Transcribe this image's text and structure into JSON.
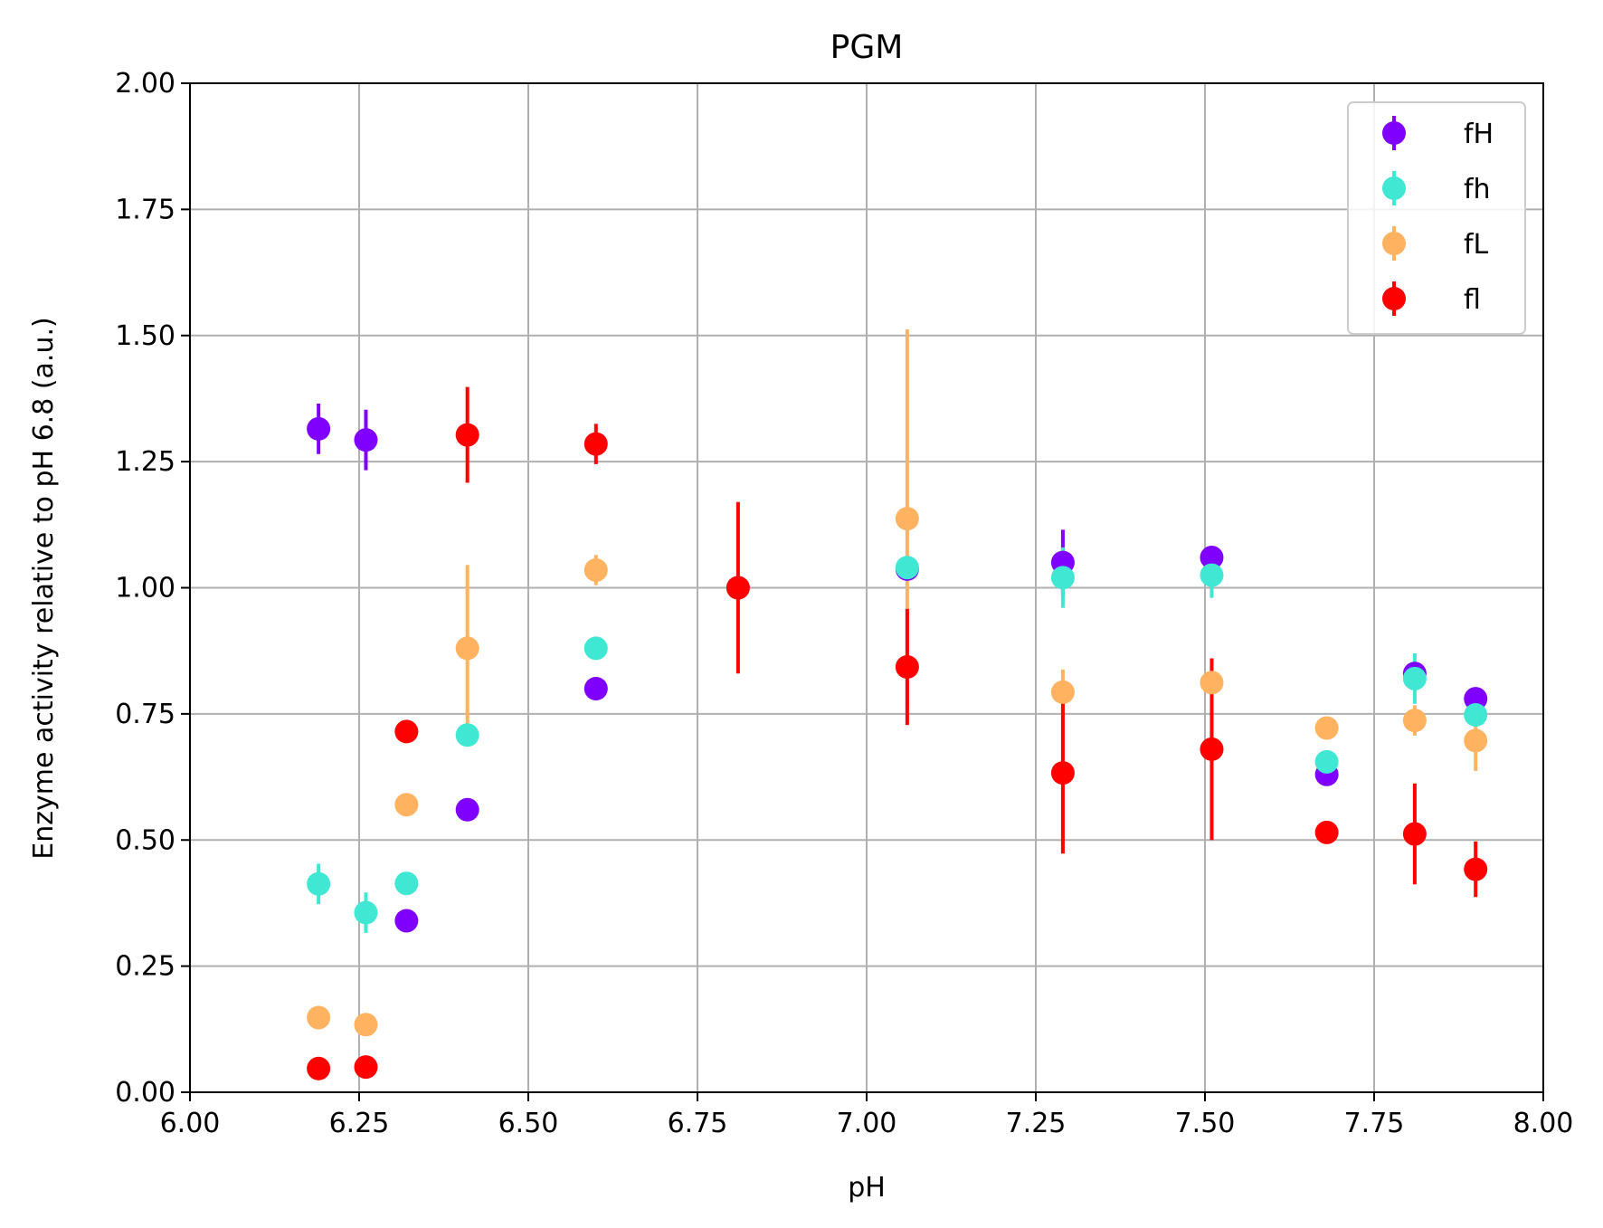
{
  "chart_data": {
    "type": "scatter",
    "title": "PGM",
    "xlabel": "pH",
    "ylabel": "Enzyme activity relative to pH 6.8 (a.u.)",
    "xlim": [
      6.0,
      8.0
    ],
    "ylim": [
      0.0,
      2.0
    ],
    "xticks": [
      "6.00",
      "6.25",
      "6.50",
      "6.75",
      "7.00",
      "7.25",
      "7.50",
      "7.75",
      "8.00"
    ],
    "yticks": [
      "0.00",
      "0.25",
      "0.50",
      "0.75",
      "1.00",
      "1.25",
      "1.50",
      "1.75",
      "2.00"
    ],
    "grid": true,
    "legend_position": "top-right",
    "series": [
      {
        "name": "fH",
        "color": "#8000ff",
        "points": [
          {
            "x": 6.19,
            "y": 1.315,
            "err": 0.05
          },
          {
            "x": 6.26,
            "y": 1.293,
            "err": 0.06
          },
          {
            "x": 6.32,
            "y": 0.34,
            "err": 0.0
          },
          {
            "x": 6.41,
            "y": 0.56,
            "err": 0.0
          },
          {
            "x": 6.6,
            "y": 0.8,
            "err": 0.0
          },
          {
            "x": 6.81,
            "y": 1.0,
            "err": 0.0
          },
          {
            "x": 7.06,
            "y": 1.037,
            "err": 0.0
          },
          {
            "x": 7.29,
            "y": 1.05,
            "err": 0.065
          },
          {
            "x": 7.51,
            "y": 1.06,
            "err": 0.0
          },
          {
            "x": 7.68,
            "y": 0.63,
            "err": 0.0
          },
          {
            "x": 7.81,
            "y": 0.83,
            "err": 0.0
          },
          {
            "x": 7.9,
            "y": 0.78,
            "err": 0.0
          }
        ]
      },
      {
        "name": "fh",
        "color": "#40e8d4",
        "points": [
          {
            "x": 6.19,
            "y": 0.413,
            "err": 0.04
          },
          {
            "x": 6.26,
            "y": 0.356,
            "err": 0.04
          },
          {
            "x": 6.32,
            "y": 0.414,
            "err": 0.0
          },
          {
            "x": 6.41,
            "y": 0.708,
            "err": 0.0
          },
          {
            "x": 6.6,
            "y": 0.88,
            "err": 0.0
          },
          {
            "x": 6.81,
            "y": 1.0,
            "err": 0.0
          },
          {
            "x": 7.06,
            "y": 1.04,
            "err": 0.0
          },
          {
            "x": 7.29,
            "y": 1.02,
            "err": 0.06
          },
          {
            "x": 7.51,
            "y": 1.025,
            "err": 0.045
          },
          {
            "x": 7.68,
            "y": 0.655,
            "err": 0.0
          },
          {
            "x": 7.81,
            "y": 0.82,
            "err": 0.05
          },
          {
            "x": 7.9,
            "y": 0.748,
            "err": 0.0
          }
        ]
      },
      {
        "name": "fL",
        "color": "#ffb360",
        "points": [
          {
            "x": 6.19,
            "y": 0.148,
            "err": 0.0
          },
          {
            "x": 6.26,
            "y": 0.134,
            "err": 0.0
          },
          {
            "x": 6.32,
            "y": 0.57,
            "err": 0.0
          },
          {
            "x": 6.41,
            "y": 0.88,
            "err": 0.165
          },
          {
            "x": 6.6,
            "y": 1.035,
            "err": 0.03
          },
          {
            "x": 6.81,
            "y": 1.0,
            "err": 0.0
          },
          {
            "x": 7.06,
            "y": 1.137,
            "err": 0.375
          },
          {
            "x": 7.29,
            "y": 0.793,
            "err": 0.045
          },
          {
            "x": 7.51,
            "y": 0.812,
            "err": 0.0
          },
          {
            "x": 7.68,
            "y": 0.722,
            "err": 0.0
          },
          {
            "x": 7.81,
            "y": 0.737,
            "err": 0.03
          },
          {
            "x": 7.9,
            "y": 0.697,
            "err": 0.06
          }
        ]
      },
      {
        "name": "fl",
        "color": "#ff0000",
        "points": [
          {
            "x": 6.19,
            "y": 0.047,
            "err": 0.0
          },
          {
            "x": 6.26,
            "y": 0.05,
            "err": 0.0
          },
          {
            "x": 6.32,
            "y": 0.715,
            "err": 0.0
          },
          {
            "x": 6.41,
            "y": 1.303,
            "err": 0.095
          },
          {
            "x": 6.6,
            "y": 1.285,
            "err": 0.04
          },
          {
            "x": 6.81,
            "y": 1.0,
            "err": 0.17
          },
          {
            "x": 7.06,
            "y": 0.843,
            "err": 0.115
          },
          {
            "x": 7.29,
            "y": 0.633,
            "err": 0.16
          },
          {
            "x": 7.51,
            "y": 0.68,
            "err": 0.18
          },
          {
            "x": 7.68,
            "y": 0.515,
            "err": 0.0
          },
          {
            "x": 7.81,
            "y": 0.512,
            "err": 0.1
          },
          {
            "x": 7.9,
            "y": 0.442,
            "err": 0.055
          }
        ]
      }
    ]
  }
}
